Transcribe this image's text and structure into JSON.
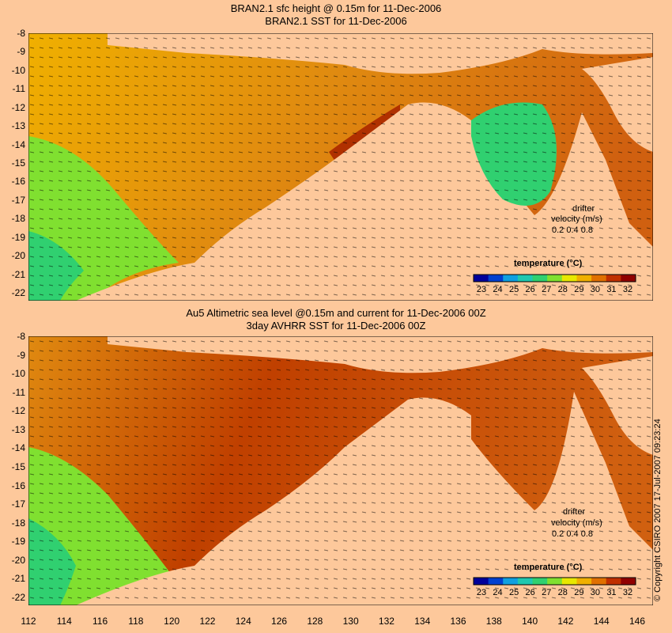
{
  "panels": [
    {
      "title_line1": "BRAN2.1 sfc height @ 0.15m for 11-Dec-2006",
      "title_line2": "BRAN2.1 SST for 11-Dec-2006",
      "drifter_label": "drifter",
      "velocity_label": "velocity (m/s)",
      "velocity_scale": "0.2 0.4 0.8",
      "colorbar_title": "temperature (°C)"
    },
    {
      "title_line1": "Au5 Altimetric sea level  @0.15m and current for 11-Dec-2006 00Z",
      "title_line2": "3day AVHRR SST for 11-Dec-2006 00Z",
      "drifter_label": "drifter",
      "velocity_label": "velocity (m/s)",
      "velocity_scale": "0.2 0.4 0.8",
      "colorbar_title": "temperature (°C)"
    }
  ],
  "latitude_labels": [
    "-8",
    "-9",
    "-10",
    "-11",
    "-12",
    "-13",
    "-14",
    "-15",
    "-16",
    "-17",
    "-18",
    "-19",
    "-20",
    "-21",
    "-22"
  ],
  "longitude_labels": [
    "112",
    "114",
    "116",
    "118",
    "120",
    "122",
    "124",
    "126",
    "128",
    "130",
    "132",
    "134",
    "136",
    "138",
    "140",
    "142",
    "144",
    "146"
  ],
  "colorbar_labels": [
    "23",
    "24",
    "25",
    "26",
    "27",
    "28",
    "29",
    "30",
    "31",
    "32"
  ],
  "colorbar_colors": [
    "#00009a",
    "#0040d0",
    "#10a0e0",
    "#20c8b0",
    "#30d070",
    "#80e030",
    "#e8e800",
    "#f0b000",
    "#e07000",
    "#c03000",
    "#900000"
  ],
  "land_color": "#fdc89b",
  "copyright": "© Copyright CSIRO 2007   17-Jul-2007 09:23:24"
}
